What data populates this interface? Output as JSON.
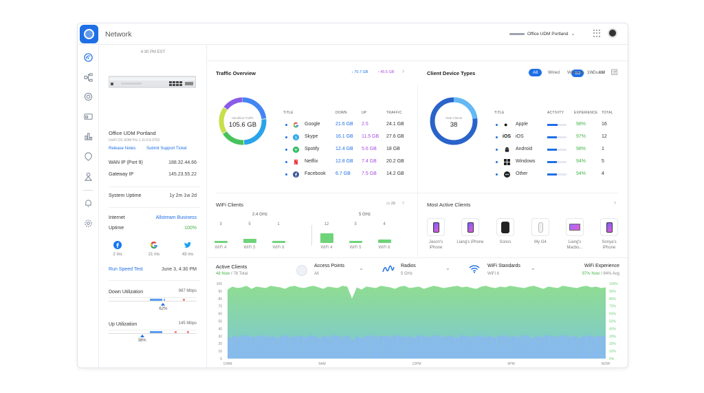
{
  "app": {
    "title": "Network"
  },
  "header": {
    "site": "Office UDM Portland"
  },
  "ranges": [
    "1D",
    "1W",
    "1M"
  ],
  "device": {
    "time": "4:30 PM EST",
    "name": "Office UDM Portland",
    "firmware": "UniFi OS UDM Pro 1.11.0-4.3753",
    "release_notes": "Release Notes",
    "support": "Submit Support Ticket",
    "wan_label": "WAN IP (Port 9)",
    "wan_value": "188.32.44.66",
    "gw_label": "Gateway IP",
    "gw_value": "145.23.55.22",
    "uptime_label": "System Uptime",
    "uptime_value": "1y 2m 1w 2d",
    "internet_label": "Internet",
    "internet_value": "Allstream Business",
    "iuptime_label": "Uptime",
    "iuptime_value": "100%",
    "services": [
      {
        "name": "facebook-icon",
        "ping": "2 ms"
      },
      {
        "name": "google-icon",
        "ping": "21 ms"
      },
      {
        "name": "twitter-icon",
        "ping": "43 ms"
      }
    ],
    "speedtest_label": "Run Speed Test",
    "speedtest_time": "June 3, 4:30 PM",
    "down_label": "Down Utilization",
    "down_max": "987 Mbps",
    "down_pct": "62%",
    "down_fraction": 0.62,
    "up_label": "Up Utilization",
    "up_max": "145 Mbps",
    "up_pct": "38%",
    "up_fraction": 0.38
  },
  "traffic": {
    "title": "Traffic Overview",
    "down_total": "70.7 GB",
    "up_total": "45.5 GB",
    "donut_label": "Identified Traffic",
    "donut_value": "105.6 GB",
    "headers": [
      "TITLE",
      "DOWN",
      "UP",
      "TRAFFIC"
    ],
    "rows": [
      {
        "title": "Google",
        "down": "21.6 GB",
        "up": "2.5",
        "traffic": "24.1 GB"
      },
      {
        "title": "Skype",
        "down": "16.1 GB",
        "up": "11.5 GB",
        "traffic": "27.6 GB"
      },
      {
        "title": "Spotify",
        "down": "12.4 GB",
        "up": "5.6 GB",
        "traffic": "18 GB"
      },
      {
        "title": "Netflix",
        "down": "12.8 GB",
        "up": "7.4 GB",
        "traffic": "20.2 GB"
      },
      {
        "title": "Facebook",
        "down": "6.7 GB",
        "up": "7.5 GB",
        "traffic": "14.2 GB"
      }
    ]
  },
  "clients": {
    "title": "Client Device Types",
    "filters": [
      "All",
      "Wired",
      "Wireless",
      "Guest"
    ],
    "donut_label": "Total Clients",
    "donut_value": "38",
    "headers": [
      "TITLE",
      "ACTIVITY",
      "EXPERIENCE",
      "TOTAL"
    ],
    "rows": [
      {
        "title": "Apple",
        "experience": "98%",
        "total": "16",
        "activity": 0.55
      },
      {
        "title": "iOS",
        "experience": "97%",
        "total": "12",
        "activity": 0.5
      },
      {
        "title": "Android",
        "experience": "98%",
        "total": "1",
        "activity": 0.5
      },
      {
        "title": "Windows",
        "experience": "94%",
        "total": "5",
        "activity": 0.5
      },
      {
        "title": "Other",
        "experience": "94%",
        "total": "4",
        "activity": 0.5
      }
    ]
  },
  "wifi": {
    "title": "WiFi Clients",
    "count": "29",
    "band24": "2.4 GHz",
    "band5": "5 GHz",
    "groups": [
      {
        "label": "WiFi 4",
        "value": "3"
      },
      {
        "label": "WiFi 5",
        "value": "5"
      },
      {
        "label": "WiFi 6",
        "value": "1"
      },
      {
        "label": "WiFi 4",
        "value": "12"
      },
      {
        "label": "WiFi 5",
        "value": "3"
      },
      {
        "label": "WiFi 6",
        "value": "4"
      }
    ]
  },
  "active_clients": {
    "title": "Most Active Clients",
    "items": [
      "Jason's iPhone",
      "Liang's iPhone",
      "Sonos",
      "My G4",
      "Liang's Macbo...",
      "Sonya's iPhone"
    ]
  },
  "bottom": {
    "active_title": "Active Clients",
    "active_now": "48 Now",
    "active_total": "/ 78 Total",
    "ap_label": "Access Points",
    "ap_value": "All",
    "radios_label": "Radios",
    "radios_value": "5 GHz",
    "std_label": "WiFi Standards",
    "std_value": "WiFi 6",
    "exp_label": "WiFi Experience",
    "exp_now": "97% Now",
    "exp_avg": "/ 94% Avg"
  },
  "chart_data": {
    "type": "area",
    "x_ticks": [
      "12AM",
      "6AM",
      "12PM",
      "6PM",
      "NOW"
    ],
    "y_left_ticks": [
      "100",
      "90",
      "80",
      "70",
      "60",
      "50",
      "40",
      "30",
      "20",
      "10",
      "0"
    ],
    "y_right_ticks": [
      "100%",
      "90%",
      "80%",
      "70%",
      "60%",
      "50%",
      "40%",
      "30%",
      "20%",
      "10%",
      "0%"
    ],
    "ylim": [
      0,
      100
    ],
    "experience": [
      92,
      96,
      94,
      95,
      97,
      93,
      96,
      95,
      94,
      97,
      96,
      95,
      93,
      96,
      97,
      95,
      94,
      96,
      97,
      95,
      93,
      96,
      95,
      94,
      97,
      96,
      80,
      95,
      92,
      96,
      95,
      94,
      97,
      96,
      95,
      93,
      96,
      97,
      94,
      95,
      96,
      93,
      95,
      97,
      96,
      94,
      95,
      96,
      97,
      95,
      96,
      94,
      93,
      96,
      97,
      95,
      94,
      96,
      95,
      97,
      96,
      95,
      94,
      96,
      97,
      95,
      93,
      96,
      95,
      94,
      97,
      96,
      95,
      94,
      96,
      97,
      95,
      96,
      94,
      95
    ],
    "clients": [
      28,
      30,
      29,
      31,
      30,
      29,
      30,
      31,
      29,
      30,
      28,
      30,
      31,
      29,
      30,
      30,
      29,
      31,
      30,
      28,
      30,
      29,
      31,
      30,
      29,
      30,
      25,
      29,
      28,
      30,
      31,
      29,
      30,
      30,
      29,
      31,
      30,
      29,
      30,
      28,
      31,
      30,
      29,
      30,
      31,
      29,
      30,
      30,
      28,
      31,
      30,
      29,
      30,
      31,
      29,
      30,
      28,
      30,
      31,
      29,
      30,
      29,
      31,
      30,
      28,
      30,
      29,
      31,
      30,
      29,
      30,
      31,
      29,
      30,
      28,
      30,
      31,
      29,
      30,
      30
    ]
  },
  "colors": {
    "accent": "#1f6fe5",
    "google": "#4285f4",
    "skype": "#2aa4e9",
    "spotify": "#1db954",
    "netflix": "#e50914",
    "facebook": "#3b5998",
    "experience": "#8fdc92"
  }
}
